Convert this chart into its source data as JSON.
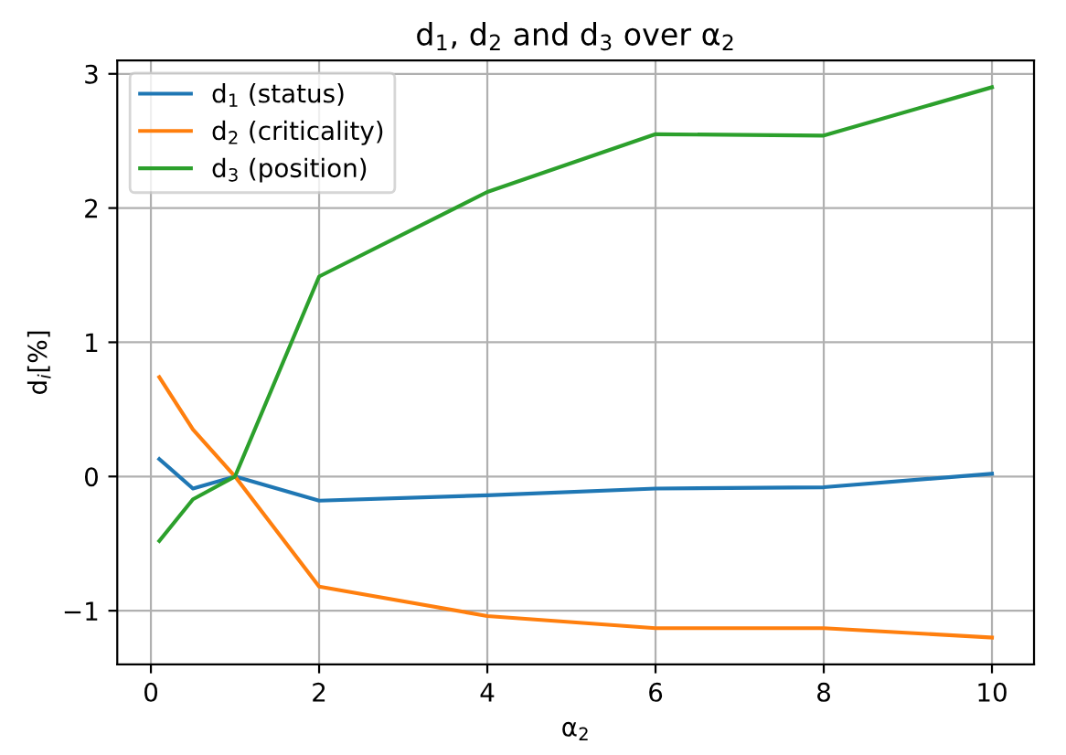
{
  "chart_data": {
    "type": "line",
    "title": "d$_{1}$, d$_{2}$ and d$_{3}$ over α$_{2}$",
    "xlabel": "α$_{2}$",
    "ylabel": "d$_{i}$[%]",
    "x": [
      0.1,
      0.5,
      1,
      2,
      4,
      6,
      8,
      10
    ],
    "series": [
      {
        "name": "d$_{1}$ (status)",
        "color": "#1f77b4",
        "values": [
          0.13,
          -0.09,
          0,
          -0.18,
          -0.14,
          -0.09,
          -0.08,
          0.02
        ]
      },
      {
        "name": "d$_{2}$ (criticality)",
        "color": "#ff7f0e",
        "values": [
          0.74,
          0.35,
          0,
          -0.82,
          -1.04,
          -1.13,
          -1.13,
          -1.2
        ]
      },
      {
        "name": "d$_{3}$ (position)",
        "color": "#2ca02c",
        "values": [
          -0.48,
          -0.17,
          0,
          1.49,
          2.12,
          2.55,
          2.54,
          2.9
        ]
      }
    ],
    "xlim": [
      -0.4,
      10.5
    ],
    "ylim": [
      -1.4,
      3.1
    ],
    "xticks": [
      0,
      2,
      4,
      6,
      8,
      10
    ],
    "yticks": [
      {
        "value": -1,
        "label": "−1"
      },
      0,
      1,
      2,
      3
    ],
    "grid": true,
    "legend": "top left"
  }
}
